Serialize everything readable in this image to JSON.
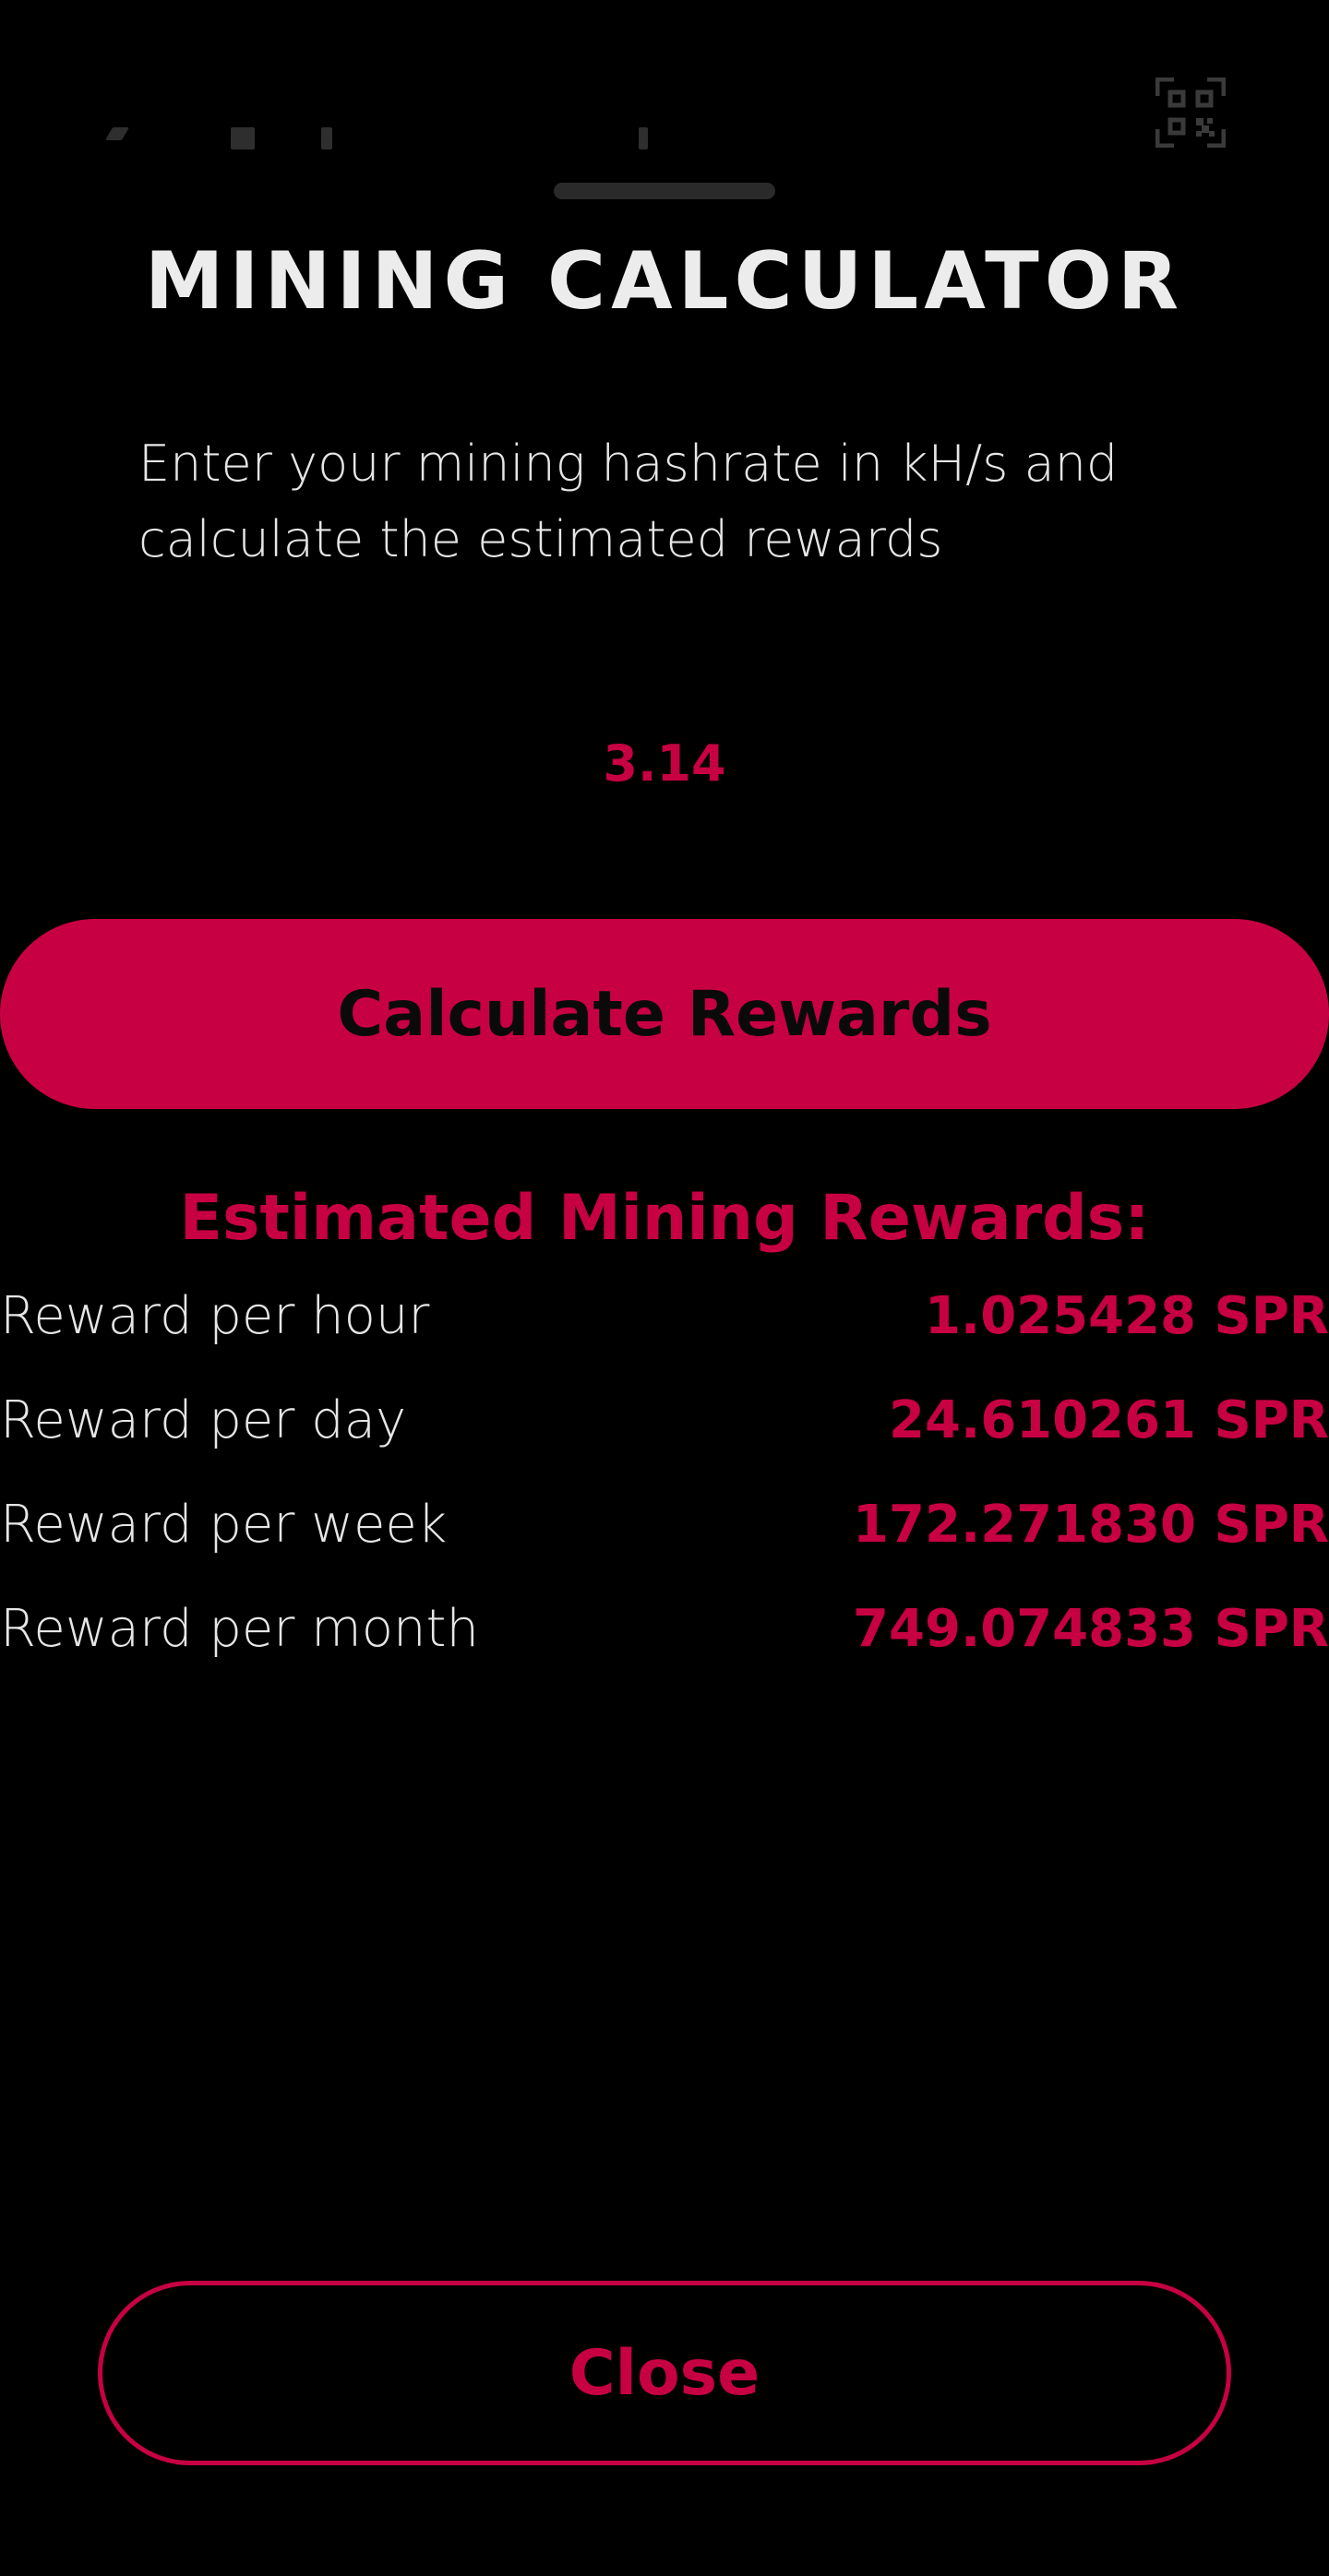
{
  "background": {
    "qr_icon": "qr-code-icon"
  },
  "sheet": {
    "title": "MINING CALCULATOR",
    "description": "Enter your mining hashrate in kH/s and calculate the estimated rewards",
    "hashrate_value": "3.14",
    "calculate_label": "Calculate Rewards",
    "results_title": "Estimated Mining Rewards:",
    "results": [
      {
        "label": "Reward per hour",
        "value": "1.025428 SPR"
      },
      {
        "label": "Reward per day",
        "value": "24.610261 SPR"
      },
      {
        "label": "Reward per week",
        "value": "172.271830 SPR"
      },
      {
        "label": "Reward per month",
        "value": "749.074833 SPR"
      }
    ],
    "close_label": "Close"
  },
  "colors": {
    "accent": "#c70044",
    "background": "#000000",
    "text": "#e6e6e6"
  }
}
